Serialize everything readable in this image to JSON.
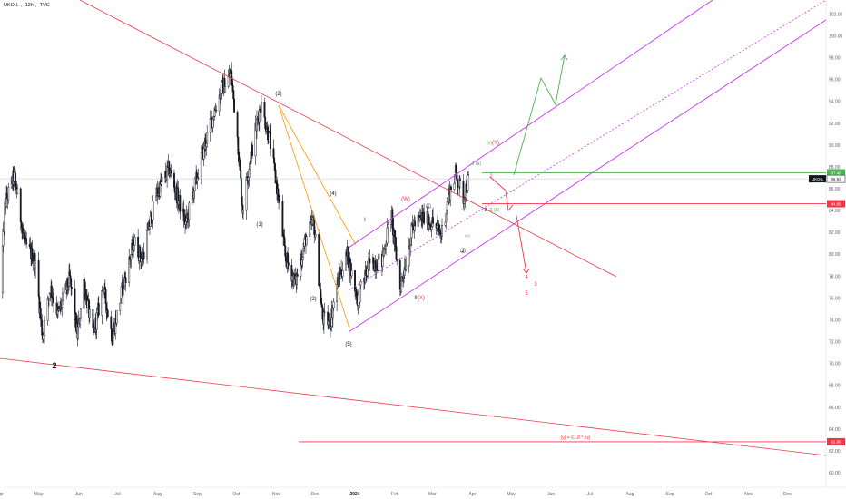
{
  "header": {
    "symbol": "UKOIL",
    "interval": "12h",
    "source": "TVC"
  },
  "chart_data": {
    "type": "candlestick",
    "title": "UKOIL, 12h, TVC",
    "ylim": [
      58.7,
      103.3
    ],
    "y_ticks": [
      60,
      62,
      64,
      66,
      68,
      70,
      72,
      74,
      76,
      78,
      80,
      82,
      84,
      86,
      88,
      90,
      92,
      94,
      96,
      98,
      100,
      102
    ],
    "y_tick_labels": [
      "60.00",
      "62.00",
      "64.00",
      "66.00",
      "68.00",
      "70.00",
      "72.00",
      "74.00",
      "76.00",
      "78.00",
      "80.00",
      "82.00",
      "84.00",
      "86.00",
      "88.00",
      "90.00",
      "92.00",
      "94.00",
      "96.00",
      "98.00",
      "100.00",
      "102.00"
    ],
    "x_range": [
      "2023-04-01",
      "2024-12-31"
    ],
    "x_ticks": [
      {
        "date": "2023-04-01",
        "label": "Apr"
      },
      {
        "date": "2023-05-01",
        "label": "May"
      },
      {
        "date": "2023-06-01",
        "label": "Jun"
      },
      {
        "date": "2023-07-01",
        "label": "Jul"
      },
      {
        "date": "2023-08-01",
        "label": "Aug"
      },
      {
        "date": "2023-09-01",
        "label": "Sep"
      },
      {
        "date": "2023-10-01",
        "label": "Oct"
      },
      {
        "date": "2023-11-01",
        "label": "Nov"
      },
      {
        "date": "2023-12-01",
        "label": "Dec"
      },
      {
        "date": "2024-01-01",
        "label": "2024",
        "bold": true
      },
      {
        "date": "2024-02-01",
        "label": "Feb"
      },
      {
        "date": "2024-03-01",
        "label": "Mar"
      },
      {
        "date": "2024-04-01",
        "label": "Apr"
      },
      {
        "date": "2024-05-01",
        "label": "May"
      },
      {
        "date": "2024-06-01",
        "label": "Jun"
      },
      {
        "date": "2024-07-01",
        "label": "Jul"
      },
      {
        "date": "2024-08-01",
        "label": "Aug"
      },
      {
        "date": "2024-09-01",
        "label": "Sep"
      },
      {
        "date": "2024-10-01",
        "label": "Oct"
      },
      {
        "date": "2024-11-01",
        "label": "Nov"
      },
      {
        "date": "2024-12-01",
        "label": "Dec"
      }
    ],
    "price_path": [
      [
        "2023-04-01",
        76.5
      ],
      [
        "2023-04-05",
        84.6
      ],
      [
        "2023-04-12",
        87.3
      ],
      [
        "2023-04-20",
        81.0
      ],
      [
        "2023-04-28",
        79.5
      ],
      [
        "2023-05-04",
        72.5
      ],
      [
        "2023-05-10",
        77.0
      ],
      [
        "2023-05-16",
        74.5
      ],
      [
        "2023-05-25",
        77.8
      ],
      [
        "2023-05-31",
        72.6
      ],
      [
        "2023-06-05",
        77.5
      ],
      [
        "2023-06-12",
        72.5
      ],
      [
        "2023-06-20",
        77.0
      ],
      [
        "2023-06-27",
        72.4
      ],
      [
        "2023-07-05",
        77.0
      ],
      [
        "2023-07-14",
        81.2
      ],
      [
        "2023-07-20",
        79.5
      ],
      [
        "2023-07-31",
        85.5
      ],
      [
        "2023-08-10",
        87.8
      ],
      [
        "2023-08-23",
        82.8
      ],
      [
        "2023-08-31",
        86.8
      ],
      [
        "2023-09-08",
        90.6
      ],
      [
        "2023-09-19",
        95.0
      ],
      [
        "2023-09-27",
        96.5
      ],
      [
        "2023-10-02",
        90.8
      ],
      [
        "2023-10-06",
        84.1
      ],
      [
        "2023-10-11",
        88.2
      ],
      [
        "2023-10-20",
        93.8
      ],
      [
        "2023-10-27",
        90.5
      ],
      [
        "2023-11-03",
        84.9
      ],
      [
        "2023-11-08",
        79.8
      ],
      [
        "2023-11-16",
        77.4
      ],
      [
        "2023-11-24",
        81.5
      ],
      [
        "2023-11-30",
        83.1
      ],
      [
        "2023-12-07",
        74.1
      ],
      [
        "2023-12-13",
        73.8
      ],
      [
        "2023-12-18",
        77.3
      ],
      [
        "2023-12-26",
        80.0
      ],
      [
        "2024-01-03",
        75.9
      ],
      [
        "2024-01-12",
        79.1
      ],
      [
        "2024-01-22",
        79.4
      ],
      [
        "2024-01-29",
        83.8
      ],
      [
        "2024-02-05",
        76.9
      ],
      [
        "2024-02-15",
        82.6
      ],
      [
        "2024-02-22",
        83.4
      ],
      [
        "2024-03-01",
        82.9
      ],
      [
        "2024-03-08",
        81.9
      ],
      [
        "2024-03-14",
        85.6
      ],
      [
        "2024-03-19",
        87.4
      ],
      [
        "2024-03-25",
        85.2
      ],
      [
        "2024-03-29",
        86.9
      ]
    ],
    "last_price": "86.93",
    "last_price_label": "UKOIL",
    "price_lines": [
      {
        "value": 87.48,
        "label": "87.48",
        "color": "#4caf50"
      },
      {
        "value": 84.65,
        "label": "84.65",
        "color": "#f23645"
      },
      {
        "value": 62.86,
        "label": "62.86",
        "color": "#f23645"
      }
    ],
    "fib_annotation": "(y) = 61.8 * (w)",
    "wave_labels": [
      {
        "text": "(1)",
        "color": "#131722"
      },
      {
        "text": "(2)",
        "color": "#131722"
      },
      {
        "text": "(3)",
        "color": "#131722"
      },
      {
        "text": "(4)",
        "color": "#131722"
      },
      {
        "text": "(5)",
        "color": "#131722"
      },
      {
        "text": "I",
        "color": "#131722"
      },
      {
        "text": "II",
        "color": "#131722"
      },
      {
        "text": "(X)",
        "color": "#f23645"
      },
      {
        "text": "(W)",
        "color": "#f23645"
      },
      {
        "text": "①",
        "color": "#131722"
      },
      {
        "text": "②",
        "color": "#131722"
      },
      {
        "text": "(v)",
        "color": "#4caf50"
      },
      {
        "text": "(Y)",
        "color": "#f23645"
      },
      {
        "text": "1",
        "color": "#4caf50"
      },
      {
        "text": "(a)",
        "color": "#4caf50"
      },
      {
        "text": "2",
        "color": "#f23645"
      },
      {
        "text": "2",
        "color": "#131722"
      },
      {
        "text": "1",
        "color": "#f23645"
      },
      {
        "text": "(b)",
        "color": "#4caf50"
      },
      {
        "text": "(iii)",
        "color": "#4caf50"
      },
      {
        "text": "(iv)",
        "color": "#4caf50"
      },
      {
        "text": "3",
        "color": "#f23645"
      },
      {
        "text": "4",
        "color": "#f23645"
      },
      {
        "text": "5",
        "color": "#f23645"
      },
      {
        "text": "2",
        "color": "#131722"
      }
    ],
    "colors": {
      "candles": "#131722",
      "upper_trendline": "#f23645",
      "lower_trendline": "#f23645",
      "channel": "#cc33ff",
      "fib_fan": "#ff9800",
      "bull_projection": "#4caf50",
      "bear_projection": "#f23645"
    }
  }
}
